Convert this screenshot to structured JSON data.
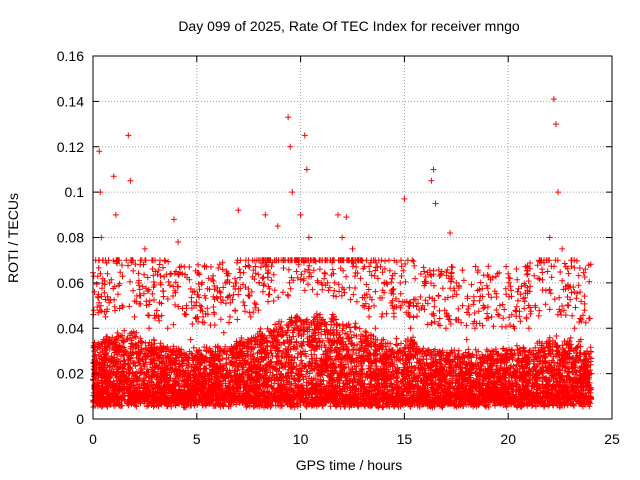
{
  "chart_data": {
    "type": "scatter",
    "title": "Day 099 of 2025, Rate Of TEC Index for receiver mngo",
    "xlabel": "GPS time / hours",
    "ylabel": "ROTI / TECUs",
    "xlim": [
      0,
      25
    ],
    "ylim": [
      0,
      0.16
    ],
    "xticks": [
      "0",
      "5",
      "10",
      "15",
      "20",
      "25"
    ],
    "yticks": [
      "0",
      "0.02",
      "0.04",
      "0.06",
      "0.08",
      "0.1",
      "0.12",
      "0.14",
      "0.16"
    ],
    "grid": true,
    "marker": "plus",
    "color": "#ff0000",
    "series": [
      {
        "x": [
          0.1,
          0.2,
          0.3,
          0.3,
          0.35,
          0.4,
          0.5,
          0.6,
          0.8,
          1.0,
          1.1,
          1.2,
          1.4,
          1.6,
          1.7,
          1.8,
          1.9,
          2.0,
          2.2,
          2.5,
          2.7,
          3.0,
          3.3,
          3.6,
          3.9,
          4.0,
          4.1,
          4.5,
          4.7,
          5.0,
          5.3,
          5.6,
          6.0,
          6.3,
          6.6,
          6.9,
          7.0,
          7.1,
          7.3,
          7.6,
          8.0,
          8.3,
          8.5,
          8.7,
          8.9,
          9.2,
          9.4,
          9.5,
          9.6,
          9.8,
          10.0,
          10.2,
          10.3,
          10.4,
          10.6,
          10.8,
          11.0,
          11.3,
          11.6,
          11.8,
          12.0,
          12.2,
          12.3,
          12.5,
          12.8,
          13.0,
          13.3,
          13.6,
          14.0,
          14.3,
          14.5,
          14.8,
          15.0,
          15.3,
          15.6,
          16.0,
          16.3,
          16.4,
          16.5,
          16.8,
          17.0,
          17.2,
          17.5,
          17.8,
          18.0,
          18.4,
          18.8,
          19.2,
          19.6,
          19.9,
          20.0,
          20.3,
          20.6,
          21.0,
          21.3,
          21.6,
          21.9,
          22.0,
          22.2,
          22.3,
          22.4,
          22.6,
          22.9,
          23.2,
          23.5,
          23.8,
          24.0
        ],
        "y": [
          0.02,
          0.025,
          0.07,
          0.118,
          0.1,
          0.08,
          0.035,
          0.045,
          0.06,
          0.107,
          0.09,
          0.055,
          0.05,
          0.07,
          0.125,
          0.105,
          0.07,
          0.045,
          0.06,
          0.075,
          0.04,
          0.065,
          0.03,
          0.04,
          0.088,
          0.065,
          0.078,
          0.05,
          0.035,
          0.03,
          0.045,
          0.025,
          0.053,
          0.038,
          0.045,
          0.06,
          0.092,
          0.07,
          0.05,
          0.045,
          0.06,
          0.09,
          0.07,
          0.052,
          0.085,
          0.07,
          0.133,
          0.12,
          0.1,
          0.065,
          0.09,
          0.125,
          0.11,
          0.08,
          0.07,
          0.055,
          0.06,
          0.06,
          0.07,
          0.09,
          0.08,
          0.089,
          0.07,
          0.075,
          0.07,
          0.05,
          0.045,
          0.04,
          0.035,
          0.03,
          0.045,
          0.06,
          0.097,
          0.04,
          0.03,
          0.06,
          0.105,
          0.11,
          0.095,
          0.065,
          0.04,
          0.082,
          0.06,
          0.05,
          0.035,
          0.04,
          0.05,
          0.045,
          0.05,
          0.055,
          0.064,
          0.04,
          0.055,
          0.04,
          0.05,
          0.07,
          0.065,
          0.08,
          0.141,
          0.13,
          0.1,
          0.075,
          0.05,
          0.04,
          0.035,
          0.03,
          0.02
        ]
      }
    ]
  }
}
